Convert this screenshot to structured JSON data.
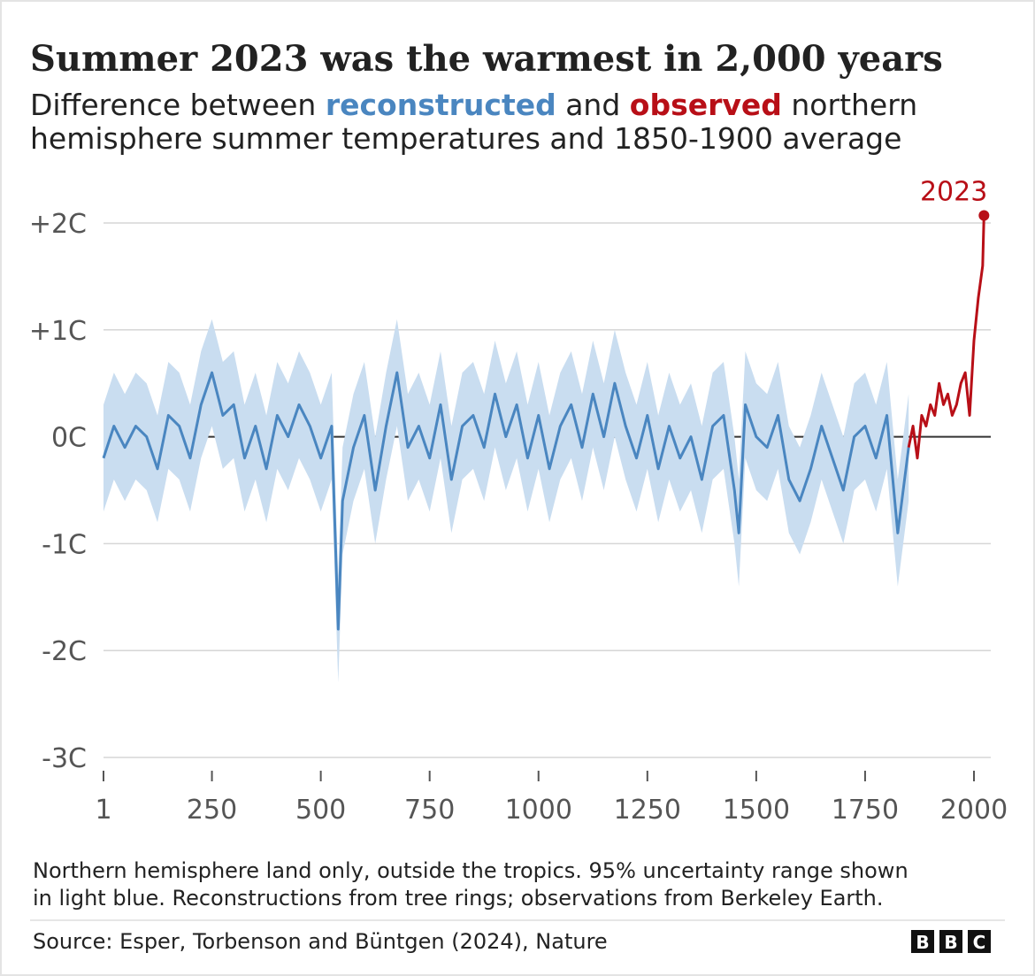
{
  "chart_data": {
    "type": "line",
    "title": "Summer 2023 was the warmest in 2,000 years",
    "subtitle": [
      "Difference between ",
      " and ",
      " northern",
      "hemisphere summer temperatures and 1850-1900 average"
    ],
    "series": [
      {
        "name": "reconstructed",
        "color": "#4a86c0",
        "band_color": "#c9ddf0",
        "x": [
          1,
          25,
          50,
          75,
          100,
          125,
          150,
          175,
          200,
          225,
          250,
          275,
          300,
          325,
          350,
          375,
          400,
          425,
          450,
          475,
          500,
          525,
          540,
          550,
          575,
          600,
          625,
          650,
          675,
          700,
          725,
          750,
          775,
          800,
          825,
          850,
          875,
          900,
          925,
          950,
          975,
          1000,
          1025,
          1050,
          1075,
          1100,
          1125,
          1150,
          1175,
          1200,
          1225,
          1250,
          1275,
          1300,
          1325,
          1350,
          1375,
          1400,
          1425,
          1450,
          1460,
          1475,
          1500,
          1525,
          1550,
          1575,
          1600,
          1625,
          1650,
          1675,
          1700,
          1725,
          1750,
          1775,
          1800,
          1825,
          1850
        ],
        "values": [
          -0.2,
          0.1,
          -0.1,
          0.1,
          0,
          -0.3,
          0.2,
          0.1,
          -0.2,
          0.3,
          0.6,
          0.2,
          0.3,
          -0.2,
          0.1,
          -0.3,
          0.2,
          0,
          0.3,
          0.1,
          -0.2,
          0.1,
          -1.8,
          -0.6,
          -0.1,
          0.2,
          -0.5,
          0.1,
          0.6,
          -0.1,
          0.1,
          -0.2,
          0.3,
          -0.4,
          0.1,
          0.2,
          -0.1,
          0.4,
          0,
          0.3,
          -0.2,
          0.2,
          -0.3,
          0.1,
          0.3,
          -0.1,
          0.4,
          0,
          0.5,
          0.1,
          -0.2,
          0.2,
          -0.3,
          0.1,
          -0.2,
          0,
          -0.4,
          0.1,
          0.2,
          -0.5,
          -0.9,
          0.3,
          0,
          -0.1,
          0.2,
          -0.4,
          -0.6,
          -0.3,
          0.1,
          -0.2,
          -0.5,
          0,
          0.1,
          -0.2,
          0.2,
          -0.9,
          -0.1
        ],
        "lower": [
          -0.7,
          -0.4,
          -0.6,
          -0.4,
          -0.5,
          -0.8,
          -0.3,
          -0.4,
          -0.7,
          -0.2,
          0.1,
          -0.3,
          -0.2,
          -0.7,
          -0.4,
          -0.8,
          -0.3,
          -0.5,
          -0.2,
          -0.4,
          -0.7,
          -0.4,
          -2.3,
          -1.1,
          -0.6,
          -0.3,
          -1,
          -0.4,
          0.1,
          -0.6,
          -0.4,
          -0.7,
          -0.2,
          -0.9,
          -0.4,
          -0.3,
          -0.6,
          -0.1,
          -0.5,
          -0.2,
          -0.7,
          -0.3,
          -0.8,
          -0.4,
          -0.2,
          -0.6,
          -0.1,
          -0.5,
          0,
          -0.4,
          -0.7,
          -0.3,
          -0.8,
          -0.4,
          -0.7,
          -0.5,
          -0.9,
          -0.4,
          -0.3,
          -1,
          -1.4,
          -0.2,
          -0.5,
          -0.6,
          -0.3,
          -0.9,
          -1.1,
          -0.8,
          -0.4,
          -0.7,
          -1,
          -0.5,
          -0.4,
          -0.7,
          -0.3,
          -1.4,
          -0.6
        ],
        "upper": [
          0.3,
          0.6,
          0.4,
          0.6,
          0.5,
          0.2,
          0.7,
          0.6,
          0.3,
          0.8,
          1.1,
          0.7,
          0.8,
          0.3,
          0.6,
          0.2,
          0.7,
          0.5,
          0.8,
          0.6,
          0.3,
          0.6,
          -1.3,
          -0.1,
          0.4,
          0.7,
          0,
          0.6,
          1.1,
          0.4,
          0.6,
          0.3,
          0.8,
          0.1,
          0.6,
          0.7,
          0.4,
          0.9,
          0.5,
          0.8,
          0.3,
          0.7,
          0.2,
          0.6,
          0.8,
          0.4,
          0.9,
          0.5,
          1,
          0.6,
          0.3,
          0.7,
          0.2,
          0.6,
          0.3,
          0.5,
          0.1,
          0.6,
          0.7,
          0,
          -0.4,
          0.8,
          0.5,
          0.4,
          0.7,
          0.1,
          -0.1,
          0.2,
          0.6,
          0.3,
          0,
          0.5,
          0.6,
          0.3,
          0.7,
          -0.4,
          0.4
        ]
      },
      {
        "name": "observed",
        "color": "#b80f17",
        "x": [
          1850,
          1860,
          1870,
          1880,
          1890,
          1900,
          1910,
          1920,
          1930,
          1940,
          1950,
          1960,
          1970,
          1980,
          1990,
          2000,
          2010,
          2020,
          2023
        ],
        "values": [
          -0.1,
          0.1,
          -0.2,
          0.2,
          0.1,
          0.3,
          0.2,
          0.5,
          0.3,
          0.4,
          0.2,
          0.3,
          0.5,
          0.6,
          0.2,
          0.9,
          1.3,
          1.6,
          2.07
        ]
      }
    ],
    "annotation": "2023",
    "xlim": [
      1,
      2000
    ],
    "xticks": [
      1,
      250,
      500,
      750,
      1000,
      1250,
      1500,
      1750,
      2000
    ],
    "ylim": [
      -3,
      2
    ],
    "yticks": [
      {
        "value": -3,
        "label": "-3C"
      },
      {
        "value": -2,
        "label": "-2C"
      },
      {
        "value": -1,
        "label": "-1C"
      },
      {
        "value": 0,
        "label": "0C"
      },
      {
        "value": 1,
        "label": "+1C"
      },
      {
        "value": 2,
        "label": "+2C"
      }
    ],
    "grid": true,
    "note": [
      "Northern hemisphere land only, outside the tropics. 95% uncertainty range shown",
      "in light blue. Reconstructions from tree rings; observations from Berkeley Earth."
    ],
    "source": "Source: Esper, Torbenson and Büntgen (2024), Nature",
    "logo": [
      "B",
      "B",
      "C"
    ]
  }
}
